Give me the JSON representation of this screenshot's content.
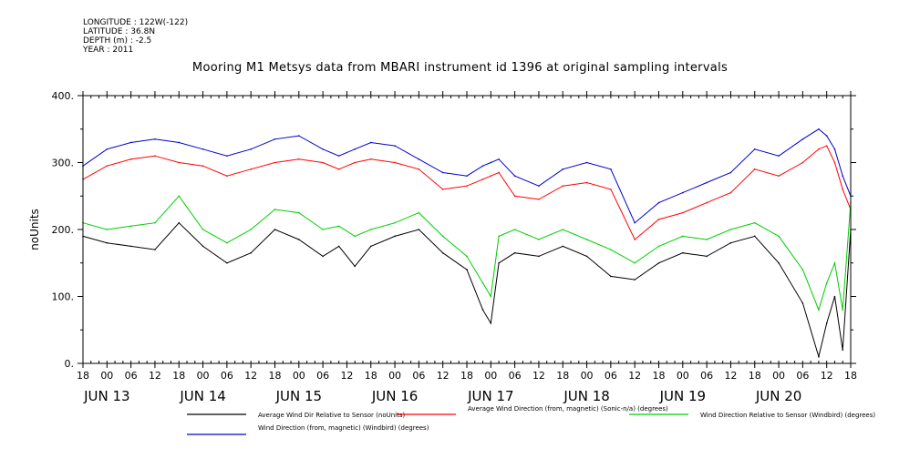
{
  "header": {
    "lines": [
      "LONGITUDE : 122W(-122)",
      "LATITUDE : 36.8N",
      "DEPTH (m) : -2.5",
      "YEAR : 2011"
    ]
  },
  "chart_data": {
    "type": "line",
    "title": "Mooring M1 Metsys data from MBARI instrument id 1396 at original sampling intervals",
    "ylabel": "noUnits",
    "ylim": [
      0,
      400
    ],
    "yticks": [
      0,
      100,
      200,
      300,
      400
    ],
    "ytick_labels": [
      "0.",
      "100.",
      "200.",
      "300.",
      "400."
    ],
    "x_unit": "hours since 2011-06-12 18:00",
    "xlim": [
      0,
      192
    ],
    "hour_labels": [
      "18",
      "00",
      "06",
      "12",
      "18",
      "00",
      "06",
      "12",
      "18",
      "00",
      "06",
      "12",
      "18",
      "00",
      "06",
      "12",
      "18",
      "00",
      "06",
      "12",
      "18",
      "00",
      "06",
      "12",
      "18",
      "00",
      "06",
      "12",
      "18",
      "00",
      "06",
      "12",
      "18"
    ],
    "day_labels": [
      "JUN 13",
      "JUN 14",
      "JUN 15",
      "JUN 16",
      "JUN 17",
      "JUN 18",
      "JUN 19",
      "JUN 20"
    ],
    "x": [
      0,
      6,
      12,
      18,
      24,
      30,
      36,
      42,
      48,
      54,
      60,
      64,
      68,
      72,
      78,
      84,
      90,
      96,
      100,
      102,
      104,
      108,
      114,
      120,
      126,
      132,
      138,
      144,
      150,
      156,
      162,
      168,
      174,
      180,
      184,
      186,
      188,
      190,
      192
    ],
    "series": [
      {
        "name": "Average Wind Dir Relative to Sensor (noUnits)",
        "color": "#000000",
        "values": [
          190,
          180,
          175,
          170,
          210,
          175,
          150,
          165,
          200,
          185,
          160,
          175,
          145,
          175,
          190,
          200,
          165,
          140,
          80,
          60,
          150,
          165,
          160,
          175,
          160,
          130,
          125,
          150,
          165,
          160,
          180,
          190,
          150,
          90,
          10,
          60,
          100,
          20,
          200
        ]
      },
      {
        "name": "Average Wind Direction (from, magnetic) (Sonic-n/a) (degrees)",
        "color": "#ff0000",
        "values": [
          275,
          295,
          305,
          310,
          300,
          295,
          280,
          290,
          300,
          305,
          300,
          290,
          300,
          305,
          300,
          290,
          260,
          265,
          275,
          280,
          285,
          250,
          245,
          265,
          270,
          260,
          185,
          215,
          225,
          240,
          255,
          290,
          280,
          300,
          320,
          325,
          300,
          260,
          230
        ]
      },
      {
        "name": "Wind Direction Relative to Sensor (Windbird) (degrees)",
        "color": "#00cc00",
        "values": [
          210,
          200,
          205,
          210,
          250,
          200,
          180,
          200,
          230,
          225,
          200,
          205,
          190,
          200,
          210,
          225,
          190,
          160,
          120,
          100,
          190,
          200,
          185,
          200,
          185,
          170,
          150,
          175,
          190,
          185,
          200,
          210,
          190,
          140,
          80,
          120,
          150,
          80,
          240
        ]
      },
      {
        "name": "Wind Direction (from, magnetic) (Windbird) (degrees)",
        "color": "#0000cc",
        "values": [
          295,
          320,
          330,
          335,
          330,
          320,
          310,
          320,
          335,
          340,
          320,
          310,
          320,
          330,
          325,
          305,
          285,
          280,
          295,
          300,
          305,
          280,
          265,
          290,
          300,
          290,
          210,
          240,
          255,
          270,
          285,
          320,
          310,
          335,
          350,
          340,
          320,
          280,
          250
        ]
      }
    ],
    "legend_position": "bottom"
  }
}
